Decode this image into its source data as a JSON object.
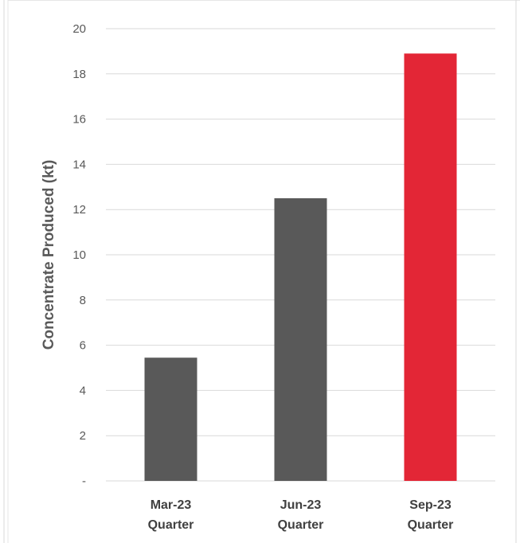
{
  "chart_data": {
    "type": "bar",
    "title": "",
    "xlabel": "",
    "ylabel": "Concentrate Produced (kt)",
    "categories": [
      [
        "Mar-23",
        "Quarter"
      ],
      [
        "Jun-23",
        "Quarter"
      ],
      [
        "Sep-23",
        "Quarter"
      ]
    ],
    "values": [
      5.45,
      12.5,
      18.9
    ],
    "bar_colors": [
      "#595959",
      "#595959",
      "#e32636"
    ],
    "ylim": [
      0,
      20
    ],
    "yticks": [
      0,
      2,
      4,
      6,
      8,
      10,
      12,
      14,
      16,
      18,
      20
    ],
    "ytick_labels": [
      "-",
      "2",
      "4",
      "6",
      "8",
      "10",
      "12",
      "14",
      "16",
      "18",
      "20"
    ],
    "grid": true,
    "legend": "none",
    "colors": {
      "grid": "#d9d9d9",
      "axis_text": "#595959",
      "ylabel": "#595959",
      "xlabel_text": "#404040"
    }
  }
}
